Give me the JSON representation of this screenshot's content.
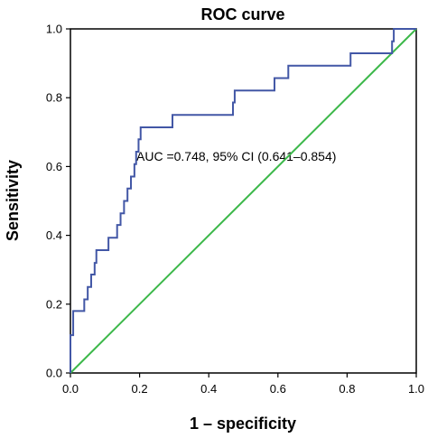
{
  "chart_data": {
    "type": "line",
    "title": "ROC curve",
    "xlabel": "1 – specificity",
    "ylabel": "Sensitivity",
    "xlim": [
      0.0,
      1.0
    ],
    "ylim": [
      0.0,
      1.0
    ],
    "x_ticks": [
      "0.0",
      "0.2",
      "0.4",
      "0.6",
      "0.8",
      "1.0"
    ],
    "y_ticks": [
      "0.0",
      "0.2",
      "0.4",
      "0.6",
      "0.8",
      "1.0"
    ],
    "grid": false,
    "annotation": "AUC =0.748, 95% CI (0.641–0.854)",
    "series": [
      {
        "color": "#4257a6",
        "points": [
          [
            0.0,
            0.0
          ],
          [
            0.0,
            0.11
          ],
          [
            0.008,
            0.11
          ],
          [
            0.008,
            0.18
          ],
          [
            0.04,
            0.18
          ],
          [
            0.04,
            0.214
          ],
          [
            0.05,
            0.214
          ],
          [
            0.05,
            0.25
          ],
          [
            0.06,
            0.25
          ],
          [
            0.06,
            0.286
          ],
          [
            0.07,
            0.286
          ],
          [
            0.07,
            0.32
          ],
          [
            0.075,
            0.32
          ],
          [
            0.075,
            0.357
          ],
          [
            0.11,
            0.357
          ],
          [
            0.11,
            0.393
          ],
          [
            0.135,
            0.393
          ],
          [
            0.135,
            0.43
          ],
          [
            0.145,
            0.43
          ],
          [
            0.145,
            0.464
          ],
          [
            0.155,
            0.464
          ],
          [
            0.155,
            0.5
          ],
          [
            0.165,
            0.5
          ],
          [
            0.165,
            0.536
          ],
          [
            0.175,
            0.536
          ],
          [
            0.175,
            0.571
          ],
          [
            0.185,
            0.571
          ],
          [
            0.185,
            0.607
          ],
          [
            0.19,
            0.607
          ],
          [
            0.19,
            0.643
          ],
          [
            0.197,
            0.643
          ],
          [
            0.197,
            0.679
          ],
          [
            0.203,
            0.679
          ],
          [
            0.203,
            0.714
          ],
          [
            0.295,
            0.714
          ],
          [
            0.295,
            0.75
          ],
          [
            0.47,
            0.75
          ],
          [
            0.47,
            0.786
          ],
          [
            0.475,
            0.786
          ],
          [
            0.475,
            0.821
          ],
          [
            0.59,
            0.821
          ],
          [
            0.59,
            0.857
          ],
          [
            0.63,
            0.857
          ],
          [
            0.63,
            0.893
          ],
          [
            0.81,
            0.893
          ],
          [
            0.81,
            0.929
          ],
          [
            0.93,
            0.929
          ],
          [
            0.93,
            0.964
          ],
          [
            0.935,
            0.964
          ],
          [
            0.935,
            1.0
          ],
          [
            1.0,
            1.0
          ]
        ]
      },
      {
        "color": "#3cb84a",
        "points": [
          [
            0.0,
            0.0
          ],
          [
            1.0,
            1.0
          ]
        ]
      }
    ]
  }
}
